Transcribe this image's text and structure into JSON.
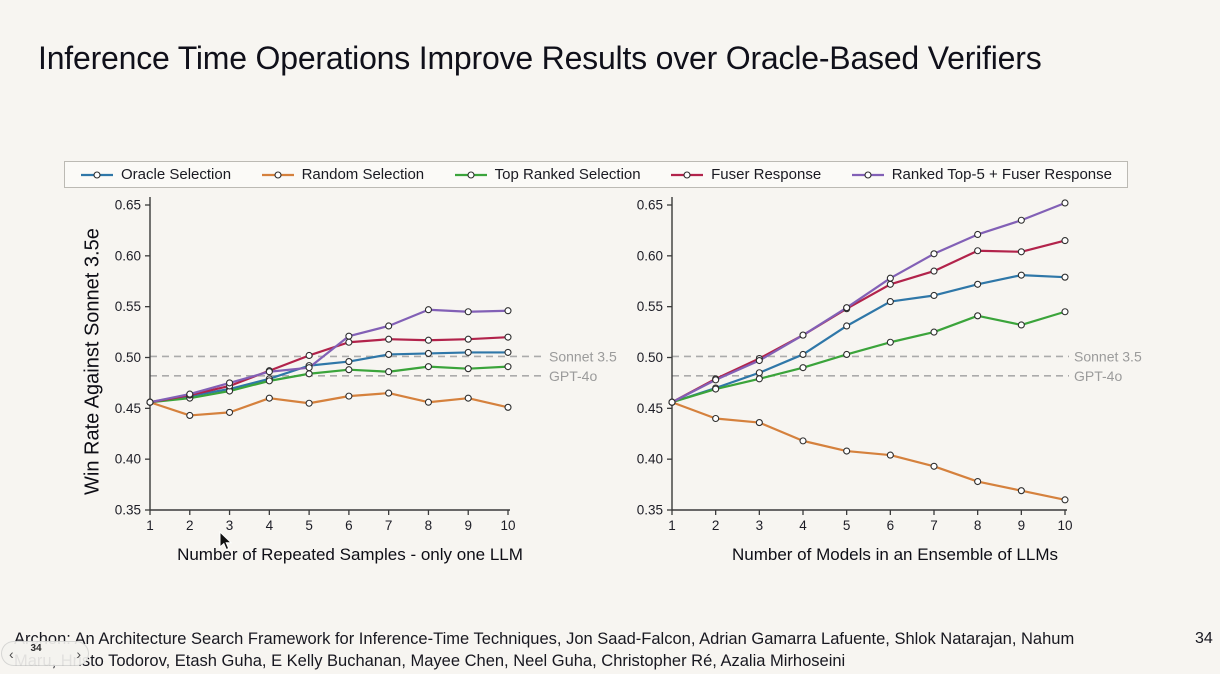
{
  "slide": {
    "title": "Inference Time Operations Improve Results over Oracle-Based Verifiers",
    "page_number": "34",
    "citation_line1": "Archon: An Architecture Search Framework for Inference-Time Techniques, Jon Saad-Falcon, Adrian Gamarra Lafuente, Shlok Natarajan, Nahum",
    "citation_line2": "Maru, Hristo Todorov, Etash Guha, E Kelly Buchanan, Mayee Chen, Neel Guha, Christopher Ré, Azalia Mirhoseini"
  },
  "nav": {
    "prev_icon": "‹",
    "page_indicator": "34",
    "next_icon": "›"
  },
  "colors": {
    "background": "#f7f5f1",
    "oracle_blue": "#2f77a8",
    "random_orange": "#d5813d",
    "top_ranked_green": "#3ba43b",
    "fuser_crimson": "#b2234b",
    "ranked_fuser_purple": "#8260b6",
    "baseline_gray": "#ababab",
    "baseline_label_gray": "#9b9b9b"
  },
  "legend": {
    "items": [
      {
        "label": "Oracle Selection",
        "color": "#2f77a8"
      },
      {
        "label": "Random Selection",
        "color": "#d5813d"
      },
      {
        "label": "Top Ranked Selection",
        "color": "#3ba43b"
      },
      {
        "label": "Fuser Response",
        "color": "#b2234b"
      },
      {
        "label": "Ranked Top-5 + Fuser Response",
        "color": "#8260b6"
      }
    ]
  },
  "chart_data": [
    {
      "type": "line",
      "title": "",
      "xlabel": "Number of Repeated Samples - only one LLM",
      "ylabel": "Win Rate Against Sonnet 3.5e",
      "x": [
        1,
        2,
        3,
        4,
        5,
        6,
        7,
        8,
        9,
        10
      ],
      "ylim": [
        0.35,
        0.65
      ],
      "yticks": [
        0.35,
        0.4,
        0.45,
        0.5,
        0.55,
        0.6,
        0.65
      ],
      "grid": false,
      "legend_position": "top-shared",
      "series": [
        {
          "name": "Oracle Selection",
          "color": "#2f77a8",
          "values": [
            0.456,
            0.462,
            0.469,
            0.479,
            0.492,
            0.496,
            0.503,
            0.504,
            0.505,
            0.505
          ]
        },
        {
          "name": "Random Selection",
          "color": "#d5813d",
          "values": [
            0.456,
            0.443,
            0.446,
            0.46,
            0.455,
            0.462,
            0.465,
            0.456,
            0.46,
            0.451
          ]
        },
        {
          "name": "Top Ranked Selection",
          "color": "#3ba43b",
          "values": [
            0.456,
            0.46,
            0.467,
            0.477,
            0.484,
            0.488,
            0.486,
            0.491,
            0.489,
            0.491
          ]
        },
        {
          "name": "Fuser Response",
          "color": "#b2234b",
          "values": [
            0.456,
            0.463,
            0.472,
            0.487,
            0.502,
            0.515,
            0.518,
            0.517,
            0.518,
            0.52
          ]
        },
        {
          "name": "Ranked Top-5 + Fuser Response",
          "color": "#8260b6",
          "values": [
            0.456,
            0.464,
            0.475,
            0.486,
            0.49,
            0.521,
            0.531,
            0.547,
            0.545,
            0.546
          ]
        }
      ],
      "baselines": [
        {
          "label": "Sonnet 3.5",
          "value": 0.501
        },
        {
          "label": "GPT-4o",
          "value": 0.482
        }
      ]
    },
    {
      "type": "line",
      "title": "",
      "xlabel": "Number of Models in an Ensemble of LLMs",
      "ylabel": "",
      "x": [
        1,
        2,
        3,
        4,
        5,
        6,
        7,
        8,
        9,
        10
      ],
      "ylim": [
        0.35,
        0.65
      ],
      "yticks": [
        0.35,
        0.4,
        0.45,
        0.5,
        0.55,
        0.6,
        0.65
      ],
      "grid": false,
      "legend_position": "top-shared",
      "series": [
        {
          "name": "Oracle Selection",
          "color": "#2f77a8",
          "values": [
            0.456,
            0.47,
            0.485,
            0.503,
            0.531,
            0.555,
            0.561,
            0.572,
            0.581,
            0.579
          ]
        },
        {
          "name": "Random Selection",
          "color": "#d5813d",
          "values": [
            0.456,
            0.44,
            0.436,
            0.418,
            0.408,
            0.404,
            0.393,
            0.378,
            0.369,
            0.36
          ]
        },
        {
          "name": "Top Ranked Selection",
          "color": "#3ba43b",
          "values": [
            0.456,
            0.469,
            0.479,
            0.49,
            0.503,
            0.515,
            0.525,
            0.541,
            0.532,
            0.545
          ]
        },
        {
          "name": "Fuser Response",
          "color": "#b2234b",
          "values": [
            0.456,
            0.479,
            0.499,
            0.522,
            0.548,
            0.572,
            0.585,
            0.605,
            0.604,
            0.615
          ]
        },
        {
          "name": "Ranked Top-5 + Fuser Response",
          "color": "#8260b6",
          "values": [
            0.456,
            0.478,
            0.497,
            0.522,
            0.549,
            0.578,
            0.602,
            0.621,
            0.635,
            0.652
          ]
        }
      ],
      "baselines": [
        {
          "label": "Sonnet 3.5",
          "value": 0.501
        },
        {
          "label": "GPT-4o",
          "value": 0.482
        }
      ]
    }
  ]
}
